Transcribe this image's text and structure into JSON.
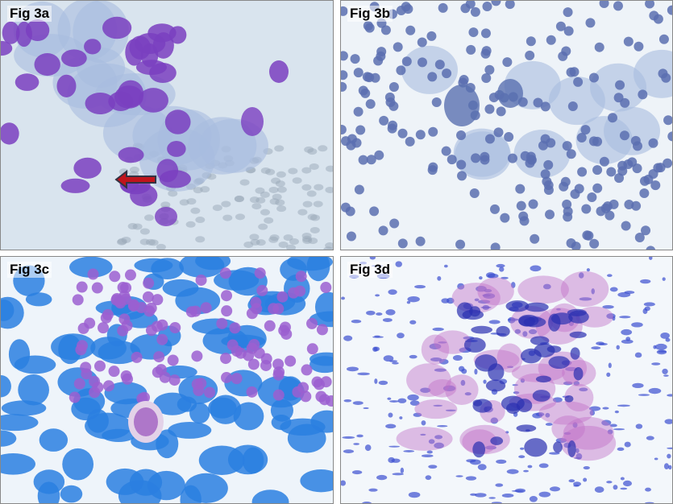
{
  "panels": [
    {
      "label": "Fig 3a",
      "annotation": "red-arrow-icon"
    },
    {
      "label": "Fig 3b"
    },
    {
      "label": "Fig 3c"
    },
    {
      "label": "Fig 3d"
    }
  ],
  "colors": {
    "arrow": "#c0141c",
    "nuclei_a": "#7a3fc0",
    "nuclei_b": "#5a6fb0",
    "stain_c": "#2a7fe0",
    "stain_d": "#3a4fd0",
    "pink_d": "#c070c8"
  }
}
